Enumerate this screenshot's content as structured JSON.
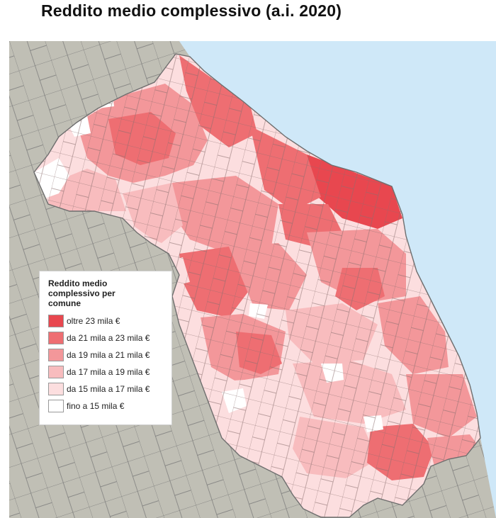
{
  "title": "Reddito medio complessivo (a.i. 2020)",
  "legend": {
    "title": "Reddito medio complessivo per comune",
    "classes": [
      {
        "label": "oltre 23 mila €",
        "color": "#e8474f"
      },
      {
        "label": "da 21 mila a 23 mila €",
        "color": "#ee6e72"
      },
      {
        "label": "da 19 mila a 21 mila €",
        "color": "#f3979a"
      },
      {
        "label": "da 17 mila a 19 mila €",
        "color": "#f8bcbe"
      },
      {
        "label": "da 15 mila a 17 mila €",
        "color": "#fcdedf"
      },
      {
        "label": "fino a 15 mila €",
        "color": "#ffffff"
      }
    ]
  },
  "colors": {
    "sea": "#cfe8f8",
    "outside_land": "#c0bfb5",
    "boundary": "#6e6e6e"
  }
}
